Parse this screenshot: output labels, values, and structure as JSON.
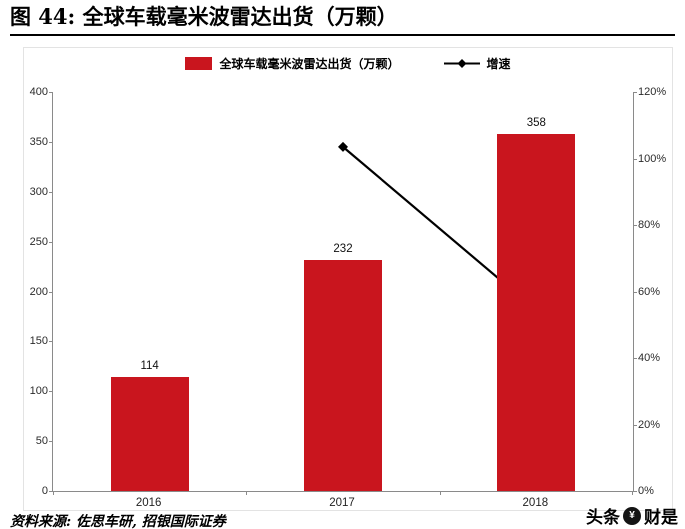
{
  "header": {
    "title": "图 44: 全球车载毫米波雷达出货（万颗）"
  },
  "legend": {
    "bar_label": "全球车载毫米波雷达出货（万颗）",
    "line_label": "增速"
  },
  "chart_data": {
    "type": "bar",
    "title": "全球车载毫米波雷达出货（万颗）",
    "categories": [
      "2016",
      "2017",
      "2018"
    ],
    "series": [
      {
        "name": "全球车载毫米波雷达出货（万颗）",
        "type": "bar",
        "axis": "left",
        "color": "#c9151e",
        "values": [
          114,
          232,
          358
        ]
      },
      {
        "name": "增速",
        "type": "line",
        "axis": "right",
        "color": "#000000",
        "marker": "diamond",
        "values": [
          null,
          103.5,
          54.3
        ]
      }
    ],
    "data_labels": [
      "114",
      "232",
      "358"
    ],
    "left_axis": {
      "min": 0,
      "max": 400,
      "step": 50,
      "ticks": [
        "0",
        "50",
        "100",
        "150",
        "200",
        "250",
        "300",
        "350",
        "400"
      ]
    },
    "right_axis": {
      "min": 0,
      "max": 120,
      "step": 20,
      "ticks": [
        "0%",
        "20%",
        "40%",
        "60%",
        "80%",
        "100%",
        "120%"
      ]
    },
    "grid": false,
    "legend_position": "top"
  },
  "footer": {
    "source": "资料来源: 佐思车研, 招银国际证券"
  },
  "watermark": {
    "prefix": "头条",
    "suffix": "财是",
    "icon": "caishi-logo"
  }
}
